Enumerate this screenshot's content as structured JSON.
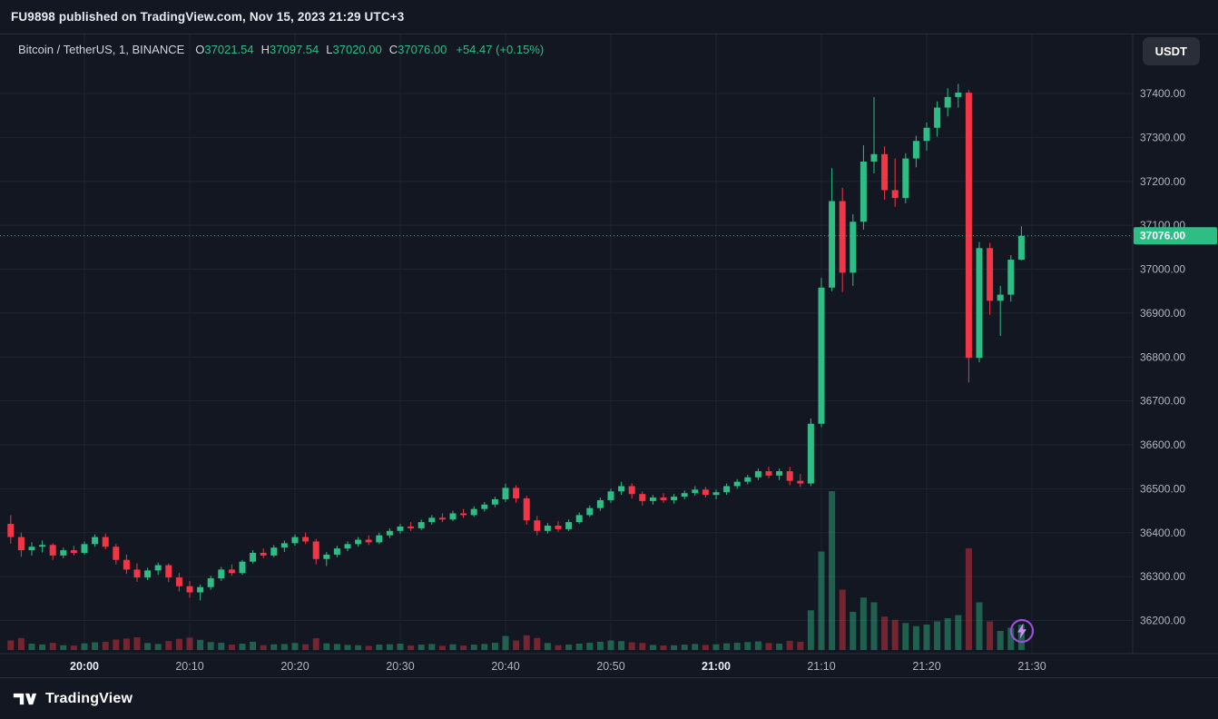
{
  "topbar": {
    "text": "FU9898 published on TradingView.com, Nov 15, 2023 21:29 UTC+3"
  },
  "legend": {
    "series": "Bitcoin / TetherUS, 1, BINANCE",
    "ohlc": {
      "o_label": "O",
      "o": "37021.54",
      "h_label": "H",
      "h": "37097.54",
      "l_label": "L",
      "l": "37020.00",
      "c_label": "C",
      "c": "37076.00"
    },
    "change": "+54.47 (+0.15%)"
  },
  "currency_button": {
    "label": "USDT"
  },
  "footer": {
    "brand": "TradingView"
  },
  "colors": {
    "bg": "#131722",
    "panel_border": "#2a2e39",
    "grid": "#1e2430",
    "up": "#2ebd85",
    "down": "#f23645",
    "vol_up": "rgba(46,189,133,0.45)",
    "vol_down": "rgba(242,54,69,0.45)",
    "axis_text": "#b2b5be",
    "axis_text_major": "#e9edf2",
    "text_primary": "#d1d4dc",
    "badge_text": "#ffffff",
    "topbar_text": "#e8eaef",
    "button_bg": "#2a2e39",
    "accent_purple": "#9c4ddc",
    "accent_purple_light": "#cf8ef7"
  },
  "chart_data": {
    "type": "candlestick",
    "symbol": "Bitcoin / TetherUS",
    "exchange": "BINANCE",
    "interval": "1",
    "quote_currency": "USDT",
    "grid": true,
    "legend_position": "top-left",
    "ylim": [
      36130,
      37530
    ],
    "price_axis": {
      "top": 37400,
      "bottom": 36200
    },
    "last_price": 37076.0,
    "last_price_label": "37076.00",
    "y_ticks": [
      {
        "value": 37400,
        "label": "37400.00"
      },
      {
        "value": 37300,
        "label": "37300.00"
      },
      {
        "value": 37200,
        "label": "37200.00"
      },
      {
        "value": 37100,
        "label": "37100.00"
      },
      {
        "value": 37000,
        "label": "37000.00"
      },
      {
        "value": 36900,
        "label": "36900.00"
      },
      {
        "value": 36800,
        "label": "36800.00"
      },
      {
        "value": 36700,
        "label": "36700.00"
      },
      {
        "value": 36600,
        "label": "36600.00"
      },
      {
        "value": 36500,
        "label": "36500.00"
      },
      {
        "value": 36400,
        "label": "36400.00"
      },
      {
        "value": 36300,
        "label": "36300.00"
      },
      {
        "value": 36200,
        "label": "36200.00"
      }
    ],
    "x_ticks": [
      {
        "time": "20:00",
        "major": true
      },
      {
        "time": "20:10",
        "major": false
      },
      {
        "time": "20:20",
        "major": false
      },
      {
        "time": "20:30",
        "major": false
      },
      {
        "time": "20:40",
        "major": false
      },
      {
        "time": "20:50",
        "major": false
      },
      {
        "time": "21:00",
        "major": true
      },
      {
        "time": "21:10",
        "major": false
      },
      {
        "time": "21:20",
        "major": false
      },
      {
        "time": "21:30",
        "major": false
      }
    ],
    "candle_format": [
      "time",
      "open",
      "high",
      "low",
      "close",
      "volume"
    ],
    "candles": [
      [
        "19:53",
        36420,
        36440,
        36375,
        36390,
        60
      ],
      [
        "19:54",
        36390,
        36400,
        36345,
        36360,
        75
      ],
      [
        "19:55",
        36360,
        36378,
        36348,
        36368,
        40
      ],
      [
        "19:56",
        36368,
        36382,
        36355,
        36372,
        35
      ],
      [
        "19:57",
        36372,
        36376,
        36338,
        36348,
        45
      ],
      [
        "19:58",
        36348,
        36366,
        36342,
        36360,
        30
      ],
      [
        "19:59",
        36360,
        36370,
        36348,
        36354,
        28
      ],
      [
        "20:00",
        36354,
        36380,
        36350,
        36374,
        42
      ],
      [
        "20:01",
        36374,
        36396,
        36368,
        36390,
        48
      ],
      [
        "20:02",
        36390,
        36398,
        36362,
        36368,
        52
      ],
      [
        "20:03",
        36368,
        36374,
        36328,
        36338,
        66
      ],
      [
        "20:04",
        36338,
        36350,
        36306,
        36316,
        72
      ],
      [
        "20:05",
        36316,
        36330,
        36288,
        36298,
        80
      ],
      [
        "20:06",
        36298,
        36320,
        36292,
        36314,
        44
      ],
      [
        "20:07",
        36314,
        36332,
        36304,
        36326,
        38
      ],
      [
        "20:08",
        36326,
        36330,
        36288,
        36298,
        56
      ],
      [
        "20:09",
        36298,
        36308,
        36266,
        36278,
        70
      ],
      [
        "20:10",
        36278,
        36290,
        36252,
        36264,
        78
      ],
      [
        "20:11",
        36264,
        36282,
        36246,
        36276,
        64
      ],
      [
        "20:12",
        36276,
        36302,
        36270,
        36296,
        50
      ],
      [
        "20:13",
        36296,
        36322,
        36290,
        36316,
        46
      ],
      [
        "20:14",
        36316,
        36328,
        36302,
        36308,
        34
      ],
      [
        "20:15",
        36308,
        36338,
        36304,
        36334,
        40
      ],
      [
        "20:16",
        36334,
        36360,
        36330,
        36354,
        52
      ],
      [
        "20:17",
        36354,
        36364,
        36342,
        36348,
        30
      ],
      [
        "20:18",
        36348,
        36372,
        36344,
        36366,
        36
      ],
      [
        "20:19",
        36366,
        36382,
        36356,
        36376,
        38
      ],
      [
        "20:20",
        36376,
        36396,
        36370,
        36390,
        44
      ],
      [
        "20:21",
        36390,
        36400,
        36374,
        36380,
        36
      ],
      [
        "20:22",
        36380,
        36386,
        36328,
        36340,
        74
      ],
      [
        "20:23",
        36340,
        36356,
        36324,
        36350,
        42
      ],
      [
        "20:24",
        36350,
        36370,
        36344,
        36364,
        38
      ],
      [
        "20:25",
        36364,
        36380,
        36358,
        36374,
        32
      ],
      [
        "20:26",
        36374,
        36390,
        36368,
        36384,
        30
      ],
      [
        "20:27",
        36384,
        36394,
        36372,
        36378,
        26
      ],
      [
        "20:28",
        36378,
        36400,
        36374,
        36394,
        34
      ],
      [
        "20:29",
        36394,
        36410,
        36388,
        36404,
        36
      ],
      [
        "20:30",
        36404,
        36420,
        36398,
        36414,
        40
      ],
      [
        "20:31",
        36414,
        36424,
        36404,
        36410,
        28
      ],
      [
        "20:32",
        36410,
        36430,
        36406,
        36424,
        34
      ],
      [
        "20:33",
        36424,
        36440,
        36418,
        36434,
        38
      ],
      [
        "20:34",
        36434,
        36444,
        36424,
        36430,
        26
      ],
      [
        "20:35",
        36430,
        36450,
        36426,
        36444,
        36
      ],
      [
        "20:36",
        36444,
        36454,
        36434,
        36440,
        28
      ],
      [
        "20:37",
        36440,
        36460,
        36436,
        36454,
        34
      ],
      [
        "20:38",
        36454,
        36470,
        36448,
        36464,
        38
      ],
      [
        "20:39",
        36464,
        36482,
        36458,
        36476,
        46
      ],
      [
        "20:40",
        36476,
        36512,
        36470,
        36502,
        88
      ],
      [
        "20:41",
        36502,
        36508,
        36468,
        36478,
        60
      ],
      [
        "20:42",
        36478,
        36484,
        36418,
        36428,
        92
      ],
      [
        "20:43",
        36428,
        36438,
        36394,
        36404,
        76
      ],
      [
        "20:44",
        36404,
        36422,
        36398,
        36416,
        44
      ],
      [
        "20:45",
        36416,
        36426,
        36402,
        36408,
        30
      ],
      [
        "20:46",
        36408,
        36430,
        36404,
        36424,
        34
      ],
      [
        "20:47",
        36424,
        36446,
        36420,
        36440,
        40
      ],
      [
        "20:48",
        36440,
        36462,
        36436,
        36456,
        46
      ],
      [
        "20:49",
        36456,
        36480,
        36450,
        36474,
        52
      ],
      [
        "20:50",
        36474,
        36500,
        36468,
        36494,
        60
      ],
      [
        "20:51",
        36494,
        36516,
        36486,
        36506,
        56
      ],
      [
        "20:52",
        36506,
        36512,
        36478,
        36488,
        48
      ],
      [
        "20:53",
        36488,
        36494,
        36462,
        36472,
        44
      ],
      [
        "20:54",
        36472,
        36486,
        36464,
        36480,
        32
      ],
      [
        "20:55",
        36480,
        36490,
        36468,
        36474,
        28
      ],
      [
        "20:56",
        36474,
        36488,
        36466,
        36482,
        30
      ],
      [
        "20:57",
        36482,
        36496,
        36476,
        36490,
        34
      ],
      [
        "20:58",
        36490,
        36506,
        36484,
        36498,
        38
      ],
      [
        "20:59",
        36498,
        36504,
        36480,
        36486,
        32
      ],
      [
        "21:00",
        36486,
        36498,
        36476,
        36492,
        36
      ],
      [
        "21:01",
        36492,
        36512,
        36486,
        36506,
        42
      ],
      [
        "21:02",
        36506,
        36522,
        36500,
        36516,
        46
      ],
      [
        "21:03",
        36516,
        36532,
        36510,
        36526,
        50
      ],
      [
        "21:04",
        36526,
        36546,
        36520,
        36540,
        54
      ],
      [
        "21:05",
        36540,
        36550,
        36524,
        36530,
        44
      ],
      [
        "21:06",
        36530,
        36546,
        36520,
        36540,
        40
      ],
      [
        "21:07",
        36540,
        36550,
        36508,
        36518,
        58
      ],
      [
        "21:08",
        36518,
        36534,
        36504,
        36512,
        52
      ],
      [
        "21:09",
        36512,
        36660,
        36506,
        36648,
        250
      ],
      [
        "21:10",
        36648,
        36980,
        36640,
        36958,
        620
      ],
      [
        "21:11",
        36958,
        37230,
        36950,
        37155,
        1000
      ],
      [
        "21:12",
        37155,
        37185,
        36948,
        36992,
        380
      ],
      [
        "21:13",
        36992,
        37125,
        36962,
        37108,
        240
      ],
      [
        "21:14",
        37108,
        37282,
        37090,
        37245,
        330
      ],
      [
        "21:15",
        37245,
        37392,
        37218,
        37262,
        300
      ],
      [
        "21:16",
        37262,
        37280,
        37158,
        37180,
        210
      ],
      [
        "21:17",
        37180,
        37252,
        37142,
        37162,
        190
      ],
      [
        "21:18",
        37162,
        37264,
        37150,
        37252,
        170
      ],
      [
        "21:19",
        37252,
        37304,
        37232,
        37292,
        150
      ],
      [
        "21:20",
        37292,
        37334,
        37270,
        37322,
        160
      ],
      [
        "21:21",
        37322,
        37382,
        37302,
        37368,
        180
      ],
      [
        "21:22",
        37368,
        37412,
        37348,
        37392,
        200
      ],
      [
        "21:23",
        37392,
        37422,
        37368,
        37402,
        220
      ],
      [
        "21:24",
        37402,
        37408,
        36742,
        36798,
        640
      ],
      [
        "21:25",
        36798,
        37062,
        36788,
        37048,
        300
      ],
      [
        "21:26",
        37048,
        37060,
        36896,
        36928,
        180
      ],
      [
        "21:27",
        36928,
        36962,
        36848,
        36942,
        120
      ],
      [
        "21:28",
        36942,
        37032,
        36926,
        37021.54,
        140
      ],
      [
        "21:29",
        37021.54,
        37097.54,
        37020.0,
        37076.0,
        160
      ]
    ]
  }
}
